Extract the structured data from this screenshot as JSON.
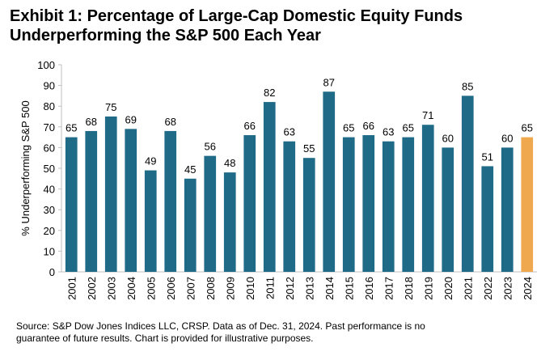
{
  "title_line1": "Exhibit 1: Percentage of Large-Cap Domestic Equity Funds",
  "title_line2": "Underperforming the S&P 500 Each Year",
  "source_line1": "Source: S&P Dow Jones Indices LLC, CRSP.  Data as of Dec. 31, 2024.  Past performance is no",
  "source_line2": "guarantee of future results.  Chart is provided for illustrative purposes.",
  "chart_data": {
    "type": "bar",
    "title": "Exhibit 1: Percentage of Large-Cap Domestic Equity Funds Underperforming the S&P 500 Each Year",
    "xlabel": "",
    "ylabel": "% Underperforming S&P 500",
    "ylim": [
      0,
      100
    ],
    "ytick_step": 10,
    "categories": [
      "2001",
      "2002",
      "2003",
      "2004",
      "2005",
      "2006",
      "2007",
      "2008",
      "2009",
      "2010",
      "2011",
      "2012",
      "2013",
      "2014",
      "2015",
      "2016",
      "2017",
      "2018",
      "2019",
      "2020",
      "2021",
      "2022",
      "2023",
      "2024"
    ],
    "values": [
      65,
      68,
      75,
      69,
      49,
      68,
      45,
      56,
      48,
      66,
      82,
      63,
      55,
      87,
      65,
      66,
      63,
      65,
      71,
      60,
      85,
      51,
      60,
      65
    ],
    "colors": {
      "bar": "#1f6a87",
      "highlight": "#f0a84e",
      "axis": "#bfbfbf"
    },
    "highlight_index": 23
  }
}
